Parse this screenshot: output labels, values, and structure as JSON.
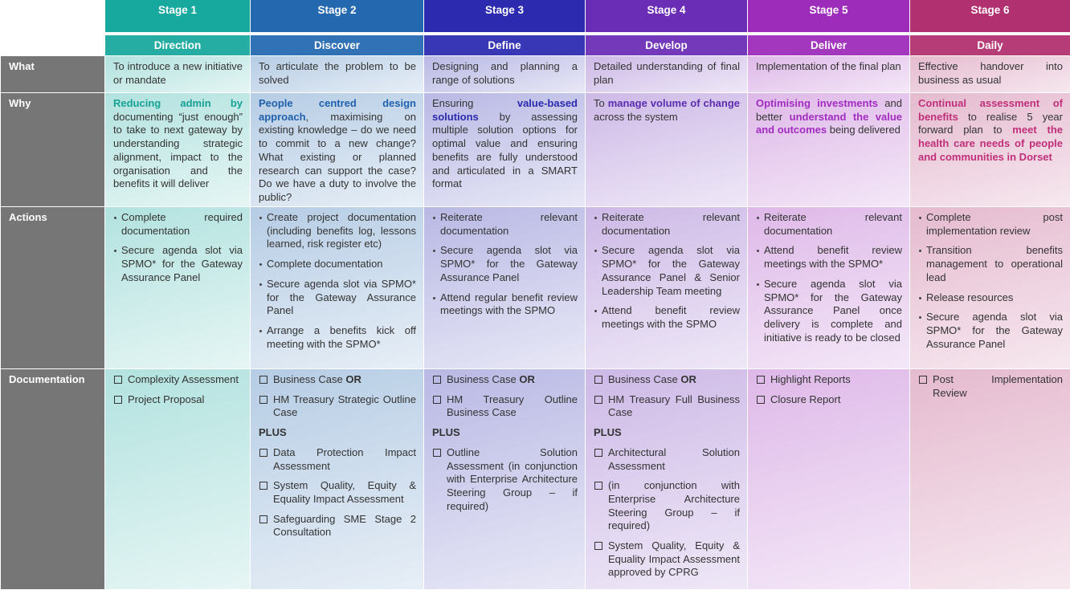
{
  "row_labels": [
    "What",
    "Why",
    "Actions",
    "Documentation"
  ],
  "stages": [
    {
      "stage": "Stage 1",
      "phase": "Direction",
      "color": "#17a89e",
      "accent": "#17a196",
      "what": "To introduce a new initiative or mandate",
      "why": [
        {
          "text": "Reducing admin by",
          "bold": true
        },
        {
          "text": " documenting “just enough” to take to next gateway by understanding strategic alignment, impact to the organisation and the benefits it will deliver"
        }
      ],
      "actions": [
        "Complete required documentation",
        "Secure agenda slot via SPMO* for the Gateway Assurance Panel"
      ],
      "documentation": [
        {
          "text": "Complexity Assessment"
        },
        {
          "text": "Project Proposal"
        }
      ]
    },
    {
      "stage": "Stage 2",
      "phase": "Discover",
      "color": "#2468b0",
      "accent": "#1f60ac",
      "what": "To articulate the problem to be solved",
      "why": [
        {
          "text": "People centred design approach",
          "bold": true
        },
        {
          "text": ", maximising on existing knowledge – do we need to commit to a new change? What existing or planned research can support the case? Do we have a duty to involve the public?"
        }
      ],
      "actions": [
        "Create project documentation (including benefits log, lessons learned, risk register etc)",
        "Complete documentation",
        "Secure agenda slot via SPMO* for the Gateway Assurance Panel",
        "Arrange a benefits kick off meeting with the SPMO*"
      ],
      "documentation": [
        {
          "text": "Business Case ",
          "bold": "OR"
        },
        {
          "text": "HM Treasury Strategic Outline Case"
        },
        {
          "heading": "PLUS"
        },
        {
          "text": "Data Protection Impact Assessment"
        },
        {
          "text": "System Quality, Equity & Equality Impact Assessment"
        },
        {
          "text": "Safeguarding SME Stage 2 Consultation"
        }
      ]
    },
    {
      "stage": "Stage 3",
      "phase": "Define",
      "color": "#2c2bb0",
      "accent": "#2a2aaf",
      "what": "Designing and planning a range of solutions",
      "why": [
        {
          "text": "Ensuring "
        },
        {
          "text": "value-based solutions",
          "bold": true
        },
        {
          "text": " by assessing multiple solution options for optimal value and ensuring benefits are fully understood and articulated in a SMART format"
        }
      ],
      "actions": [
        "Reiterate relevant documentation",
        "Secure agenda slot via SPMO* for the Gateway Assurance Panel",
        "Attend regular benefit review meetings with the SPMO"
      ],
      "documentation": [
        {
          "text": "Business Case ",
          "bold": "OR"
        },
        {
          "text": "HM Treasury Outline Business Case"
        },
        {
          "heading": "PLUS"
        },
        {
          "text": "Outline Solution Assessment (in conjunction with Enterprise Architecture Steering Group – if required)"
        }
      ]
    },
    {
      "stage": "Stage 4",
      "phase": "Develop",
      "color": "#6a2db6",
      "accent": "#5a2cb0",
      "what": "Detailed understanding of final plan",
      "why": [
        {
          "text": "To "
        },
        {
          "text": "manage volume of change",
          "bold": true
        },
        {
          "text": " across the system"
        }
      ],
      "actions": [
        "Reiterate relevant documentation",
        "Secure agenda slot via SPMO* for the Gateway Assurance Panel & Senior Leadership Team meeting",
        "Attend benefit review meetings with the SPMO"
      ],
      "documentation": [
        {
          "text": "Business Case ",
          "bold": "OR"
        },
        {
          "text": "HM Treasury Full Business Case"
        },
        {
          "heading": "PLUS"
        },
        {
          "text": "Architectural Solution Assessment"
        },
        {
          "text": "(in conjunction with Enterprise Architecture Steering Group – if required)"
        },
        {
          "text": "System Quality, Equity & Equality Impact Assessment approved by CPRG"
        }
      ]
    },
    {
      "stage": "Stage 5",
      "phase": "Deliver",
      "color": "#9d2cbb",
      "accent": "#a22cc0",
      "what": "Implementation of the final plan",
      "why": [
        {
          "text": "Optimising investments",
          "bold": true
        },
        {
          "text": " and better "
        },
        {
          "text": "understand the value and outcomes",
          "bold": true
        },
        {
          "text": " being delivered"
        }
      ],
      "actions": [
        "Reiterate relevant documentation",
        "Attend benefit review meetings with the SPMO*",
        "Secure agenda slot via SPMO* for the Gateway Assurance Panel once delivery is complete and initiative is ready to be closed"
      ],
      "documentation": [
        {
          "text": "Highlight Reports"
        },
        {
          "text": "Closure Report"
        }
      ]
    },
    {
      "stage": "Stage 6",
      "phase": "Daily",
      "color": "#b1306f",
      "accent": "#c0307a",
      "what": "Effective handover into business as usual",
      "why": [
        {
          "text": "Continual assessment of benefits",
          "bold": true
        },
        {
          "text": " to realise 5 year forward plan to "
        },
        {
          "text": "meet the health care needs of people and communities in Dorset",
          "bold": true
        }
      ],
      "actions": [
        "Complete post implementation review",
        "Transition benefits management to operational lead",
        "Release resources",
        "Secure agenda slot via SPMO* for the Gateway Assurance Panel"
      ],
      "documentation": [
        {
          "text": "Post Implementation Review"
        }
      ]
    }
  ]
}
